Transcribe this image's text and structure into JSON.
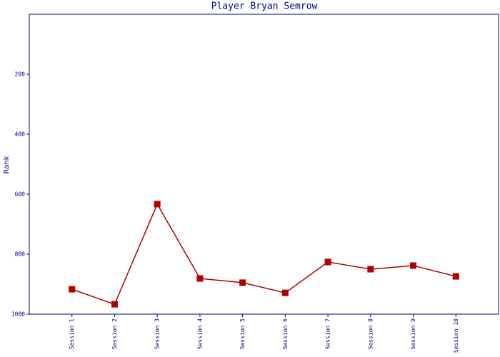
{
  "chart_data": {
    "type": "line",
    "title": "Player Bryan Semrow",
    "y_label": "Rank",
    "categories": [
      "Session 1",
      "Session 2",
      "Session 3",
      "Session 4",
      "Session 5",
      "Session 6",
      "Session 7",
      "Session 8",
      "Session 9",
      "Session 10"
    ],
    "series": [
      {
        "name": "Rank",
        "color": "#b00000",
        "values": [
          917,
          967,
          633,
          881,
          895,
          929,
          826,
          850,
          838,
          874
        ]
      }
    ],
    "ylim": [
      0,
      1000
    ],
    "y_inverted": true,
    "yticks": [
      200,
      400,
      600,
      800,
      1000
    ],
    "grid": false
  }
}
